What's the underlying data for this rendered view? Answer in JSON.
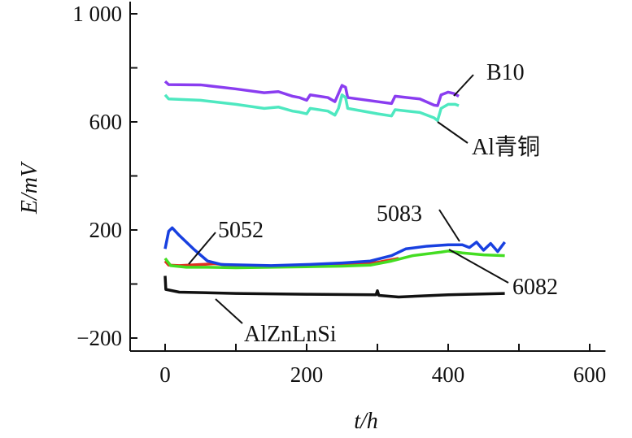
{
  "chart_data": {
    "type": "line",
    "xlabel": "t/h",
    "ylabel": "E/mV",
    "xlim": [
      -50,
      620
    ],
    "ylim": [
      -250,
      1050
    ],
    "xticks": [
      0,
      200,
      400,
      600
    ],
    "yticks": [
      -200,
      200,
      600,
      1000
    ],
    "xtick_labels": [
      "0",
      "200",
      "400",
      "600"
    ],
    "ytick_labels": [
      "−200",
      "200",
      "600",
      "1 000"
    ],
    "grid": false,
    "series": [
      {
        "name": "B10",
        "color": "#8a3df0",
        "points": [
          [
            0,
            750
          ],
          [
            5,
            738
          ],
          [
            50,
            737
          ],
          [
            100,
            722
          ],
          [
            140,
            708
          ],
          [
            160,
            712
          ],
          [
            180,
            695
          ],
          [
            190,
            690
          ],
          [
            200,
            680
          ],
          [
            205,
            700
          ],
          [
            230,
            690
          ],
          [
            240,
            675
          ],
          [
            245,
            705
          ],
          [
            250,
            735
          ],
          [
            255,
            728
          ],
          [
            258,
            690
          ],
          [
            300,
            675
          ],
          [
            320,
            668
          ],
          [
            325,
            695
          ],
          [
            360,
            685
          ],
          [
            380,
            662
          ],
          [
            385,
            660
          ],
          [
            390,
            700
          ],
          [
            400,
            710
          ],
          [
            408,
            705
          ],
          [
            415,
            695
          ]
        ]
      },
      {
        "name": "Al青铜",
        "color": "#4ee8c0",
        "points": [
          [
            0,
            700
          ],
          [
            5,
            685
          ],
          [
            50,
            680
          ],
          [
            100,
            665
          ],
          [
            140,
            650
          ],
          [
            160,
            655
          ],
          [
            180,
            640
          ],
          [
            190,
            636
          ],
          [
            200,
            630
          ],
          [
            205,
            650
          ],
          [
            230,
            640
          ],
          [
            240,
            625
          ],
          [
            245,
            650
          ],
          [
            250,
            700
          ],
          [
            255,
            690
          ],
          [
            258,
            650
          ],
          [
            300,
            630
          ],
          [
            320,
            622
          ],
          [
            325,
            645
          ],
          [
            360,
            635
          ],
          [
            380,
            615
          ],
          [
            385,
            605
          ],
          [
            390,
            650
          ],
          [
            400,
            665
          ],
          [
            410,
            665
          ],
          [
            415,
            660
          ]
        ]
      },
      {
        "name": "5052",
        "color": "#e03020",
        "points": [
          [
            0,
            85
          ],
          [
            5,
            70
          ],
          [
            20,
            68
          ],
          [
            50,
            72
          ],
          [
            70,
            75
          ],
          [
            90,
            70
          ],
          [
            150,
            66
          ],
          [
            250,
            72
          ],
          [
            300,
            80
          ],
          [
            330,
            95
          ]
        ]
      },
      {
        "name": "6082",
        "color": "#44dd22",
        "points": [
          [
            0,
            95
          ],
          [
            8,
            68
          ],
          [
            30,
            62
          ],
          [
            60,
            62
          ],
          [
            100,
            60
          ],
          [
            150,
            62
          ],
          [
            200,
            64
          ],
          [
            250,
            66
          ],
          [
            290,
            70
          ],
          [
            320,
            85
          ],
          [
            350,
            105
          ],
          [
            390,
            118
          ],
          [
            400,
            122
          ],
          [
            420,
            115
          ],
          [
            450,
            108
          ],
          [
            480,
            105
          ]
        ]
      },
      {
        "name": "5083",
        "color": "#1840e0",
        "points": [
          [
            0,
            130
          ],
          [
            5,
            195
          ],
          [
            10,
            208
          ],
          [
            20,
            180
          ],
          [
            40,
            130
          ],
          [
            60,
            85
          ],
          [
            80,
            72
          ],
          [
            150,
            68
          ],
          [
            200,
            72
          ],
          [
            250,
            78
          ],
          [
            290,
            85
          ],
          [
            320,
            105
          ],
          [
            340,
            130
          ],
          [
            370,
            140
          ],
          [
            400,
            145
          ],
          [
            420,
            145
          ],
          [
            430,
            135
          ],
          [
            440,
            155
          ],
          [
            450,
            125
          ],
          [
            460,
            150
          ],
          [
            470,
            120
          ],
          [
            480,
            155
          ]
        ]
      },
      {
        "name": "AlZnLnSi",
        "color": "#111111",
        "points": [
          [
            0,
            30
          ],
          [
            1,
            -20
          ],
          [
            20,
            -30
          ],
          [
            100,
            -35
          ],
          [
            200,
            -38
          ],
          [
            298,
            -40
          ],
          [
            300,
            -25
          ],
          [
            302,
            -42
          ],
          [
            330,
            -48
          ],
          [
            400,
            -40
          ],
          [
            480,
            -35
          ]
        ]
      }
    ]
  }
}
